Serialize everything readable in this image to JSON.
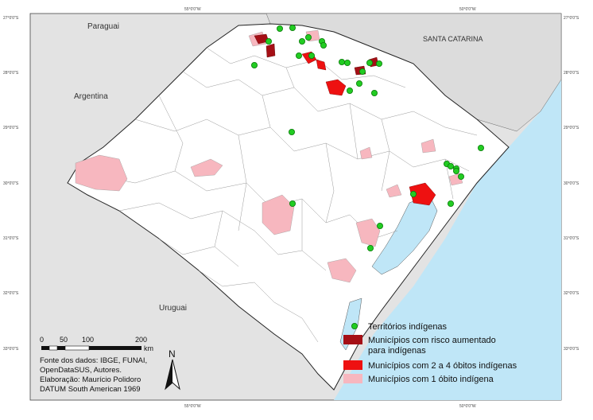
{
  "regions": {
    "paraguai": "Paraguai",
    "argentina": "Argentina",
    "santa_catarina": "SANTA CATARINA",
    "uruguai": "Uruguai"
  },
  "legend": {
    "territorios": "Territórios indígenas",
    "risco_line1": "Municípios com risco aumentado",
    "risco_line2": "para indígenas",
    "obitos_2a4": "Municípios com 2 a 4 óbitos indígenas",
    "obitos_1": "Municípios com 1 óbito indígena"
  },
  "scale": {
    "ticks": [
      "0",
      "50",
      "100",
      "200"
    ],
    "unit": "km"
  },
  "north": "N",
  "credits": [
    "Fonte dos dados: IBGE, FUNAI,",
    "OpenDataSUS, Autores.",
    "Elaboração: Maurício Polidoro",
    "DATUM South American 1969"
  ],
  "coords": {
    "top": [
      "55°0'0\"W",
      "50°0'0\"W"
    ],
    "bottom": [
      "55°0'0\"W",
      "50°0'0\"W"
    ],
    "left": [
      "27°0'0\"S",
      "28°0'0\"S",
      "29°0'0\"S",
      "30°0'0\"S",
      "31°0'0\"S",
      "32°0'0\"S",
      "33°0'0\"S"
    ],
    "right": [
      "27°0'0\"S",
      "28°0'0\"S",
      "29°0'0\"S",
      "30°0'0\"S",
      "31°0'0\"S",
      "32°0'0\"S",
      "33°0'0\"S"
    ]
  },
  "colors": {
    "ocean": "#bfe6f7",
    "neighbor": "#e3e3e3",
    "state": "#ffffff",
    "risk": "#a50f15",
    "deaths_2_4": "#ee1111",
    "deaths_1": "#f7b7bf",
    "territory": "#22cc22"
  },
  "territories_count": 30
}
